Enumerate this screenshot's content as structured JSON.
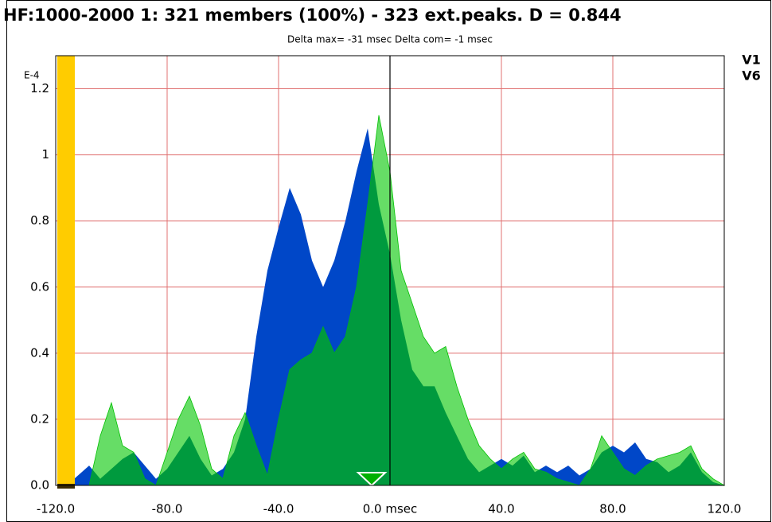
{
  "chart_data": {
    "type": "area",
    "title": "HF:1000-2000 1: 321 members (100%) - 323 ext.peaks.  D = 0.844",
    "subtitle": "Delta max= -31 msec    Delta com= -1 msec",
    "y_unit_label": "E-4",
    "x": [
      -120,
      -116,
      -112,
      -108,
      -104,
      -100,
      -96,
      -92,
      -88,
      -84,
      -80,
      -76,
      -72,
      -68,
      -64,
      -60,
      -56,
      -52,
      -48,
      -44,
      -40,
      -36,
      -32,
      -28,
      -24,
      -20,
      -16,
      -12,
      -8,
      -4,
      0,
      4,
      8,
      12,
      16,
      20,
      24,
      28,
      32,
      36,
      40,
      44,
      48,
      52,
      56,
      60,
      64,
      68,
      72,
      76,
      80,
      84,
      88,
      92,
      96,
      100,
      104,
      108,
      112,
      116,
      120
    ],
    "series": [
      {
        "name": "V1",
        "color": "#0047c8",
        "values": [
          0,
          0,
          0.03,
          0.06,
          0.02,
          0.05,
          0.08,
          0.1,
          0.06,
          0.02,
          0.05,
          0.1,
          0.15,
          0.08,
          0.03,
          0.05,
          0.1,
          0.2,
          0.45,
          0.65,
          0.78,
          0.9,
          0.82,
          0.68,
          0.6,
          0.68,
          0.8,
          0.95,
          1.08,
          0.85,
          0.7,
          0.5,
          0.35,
          0.3,
          0.3,
          0.22,
          0.15,
          0.08,
          0.04,
          0.06,
          0.08,
          0.06,
          0.09,
          0.04,
          0.06,
          0.04,
          0.06,
          0.03,
          0.05,
          0.1,
          0.12,
          0.1,
          0.13,
          0.08,
          0.07,
          0.04,
          0.06,
          0.1,
          0.04,
          0.01,
          0
        ]
      },
      {
        "name": "V6",
        "color": "#00c000",
        "values": [
          0,
          0,
          0,
          0,
          0.15,
          0.25,
          0.12,
          0.1,
          0.02,
          0,
          0.1,
          0.2,
          0.27,
          0.18,
          0.05,
          0.02,
          0.15,
          0.22,
          0.12,
          0.03,
          0.2,
          0.35,
          0.38,
          0.4,
          0.48,
          0.4,
          0.45,
          0.6,
          0.85,
          1.12,
          0.95,
          0.65,
          0.55,
          0.45,
          0.4,
          0.42,
          0.3,
          0.2,
          0.12,
          0.08,
          0.05,
          0.08,
          0.1,
          0.05,
          0.04,
          0.02,
          0.01,
          0,
          0.05,
          0.15,
          0.1,
          0.05,
          0.03,
          0.06,
          0.08,
          0.09,
          0.1,
          0.12,
          0.05,
          0.02,
          0
        ]
      }
    ],
    "xlim": [
      -120,
      120
    ],
    "xticks": [
      {
        "value": -120,
        "label": "-120.0"
      },
      {
        "value": -80,
        "label": "-80.0"
      },
      {
        "value": -40,
        "label": "-40.0"
      },
      {
        "value": 0,
        "label": "0.0 msec"
      },
      {
        "value": 40,
        "label": "40.0"
      },
      {
        "value": 80,
        "label": "80.0"
      },
      {
        "value": 120,
        "label": "120.0"
      }
    ],
    "ylim": [
      0,
      1.3
    ],
    "yticks": [
      {
        "value": 0,
        "label": "0.0"
      },
      0.2,
      0.4,
      0.6,
      0.8,
      1,
      1.2
    ],
    "grid": true
  }
}
